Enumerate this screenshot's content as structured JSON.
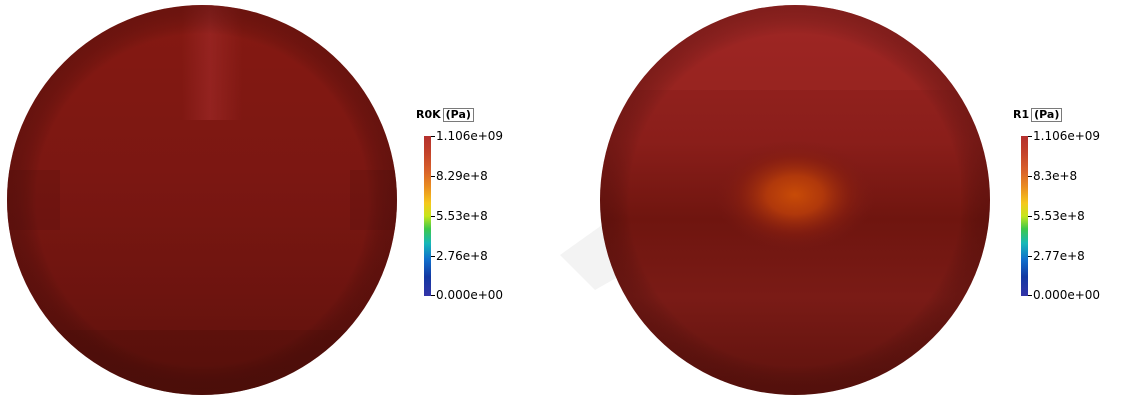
{
  "colors": {
    "background": "#ffffff",
    "disk_base": "#761510",
    "disk_highlight": "#a12a29",
    "center_hotspot": "#c84b07"
  },
  "views": [
    {
      "scalar_bar": {
        "title": "R0K",
        "unit": "(Pa)",
        "labels": [
          "1.106e+09",
          "8.29e+8",
          "5.53e+8",
          "2.76e+8",
          "0.000e+00"
        ]
      }
    },
    {
      "scalar_bar": {
        "title": "R1",
        "unit": "(Pa)",
        "labels": [
          "1.106e+09",
          "8.3e+8",
          "5.53e+8",
          "2.77e+8",
          "0.000e+00"
        ]
      }
    }
  ]
}
